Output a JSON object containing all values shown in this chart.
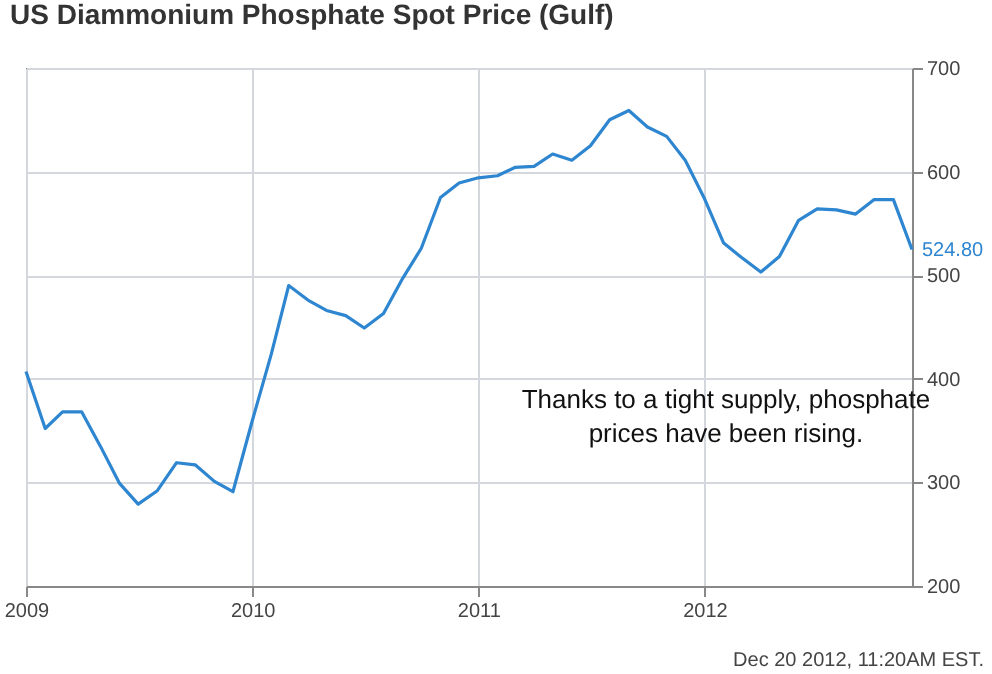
{
  "chart_data": {
    "type": "line",
    "title": "US Diammonium Phosphate Spot Price (Gulf)",
    "annotations": [
      "Thanks to a tight supply, phosphate prices have been rising.",
      "Dec 20 2012, 11:20AM EST."
    ],
    "x": [
      "2009-01",
      "2009-02",
      "2009-03",
      "2009-04",
      "2009-05",
      "2009-06",
      "2009-07",
      "2009-08",
      "2009-09",
      "2009-10",
      "2009-11",
      "2009-12",
      "2010-01",
      "2010-02",
      "2010-03",
      "2010-04",
      "2010-05",
      "2010-06",
      "2010-07",
      "2010-08",
      "2010-09",
      "2010-10",
      "2010-11",
      "2010-12",
      "2011-01",
      "2011-02",
      "2011-03",
      "2011-04",
      "2011-05",
      "2011-06",
      "2011-07",
      "2011-08",
      "2011-09",
      "2011-10",
      "2011-11",
      "2011-12",
      "2012-01",
      "2012-02",
      "2012-03",
      "2012-04",
      "2012-05",
      "2012-06",
      "2012-07",
      "2012-08",
      "2012-09",
      "2012-10",
      "2012-11",
      "2012-12"
    ],
    "series": [
      {
        "color": "#2e86d0",
        "values": [
          407,
          352,
          368,
          368,
          335,
          299,
          279,
          292,
          319,
          317,
          301,
          291,
          359,
          424,
          490,
          476,
          466,
          461,
          449,
          463,
          497,
          526,
          575,
          589,
          594,
          596,
          604,
          605,
          617,
          611,
          625,
          650,
          659,
          643,
          634,
          611,
          574,
          531,
          517,
          503,
          518,
          553,
          564,
          563,
          559,
          573,
          573,
          524.8
        ],
        "value_labels": [
          null,
          null,
          null,
          null,
          null,
          null,
          null,
          null,
          null,
          null,
          null,
          null,
          null,
          null,
          null,
          null,
          null,
          null,
          null,
          null,
          null,
          null,
          null,
          null,
          null,
          null,
          null,
          null,
          null,
          null,
          null,
          null,
          null,
          null,
          null,
          null,
          null,
          null,
          null,
          null,
          null,
          null,
          null,
          null,
          null,
          null,
          null,
          "524.80"
        ]
      }
    ],
    "xlim": [
      "2009-01",
      "2012-12"
    ],
    "xticks": [
      {
        "value": "2009-01",
        "label": "2009"
      },
      {
        "value": "2010-01",
        "label": "2010"
      },
      {
        "value": "2011-01",
        "label": "2011"
      },
      {
        "value": "2012-01",
        "label": "2012"
      }
    ],
    "ylim": [
      200,
      700
    ],
    "yticks": [
      200,
      300,
      400,
      500,
      600,
      700
    ],
    "grid": true,
    "marker": "none",
    "line_style": "solid"
  }
}
